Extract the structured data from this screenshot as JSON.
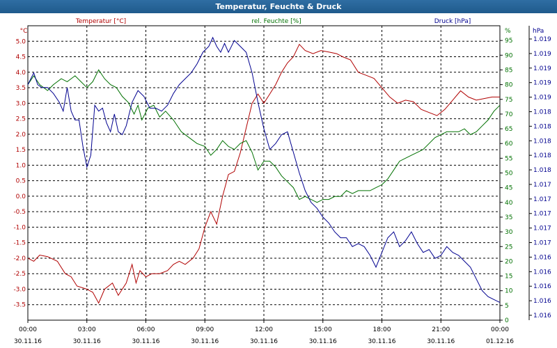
{
  "window": {
    "title": "Temperatur, Feuchte & Druck"
  },
  "colors": {
    "temperature": "#b00000",
    "humidity": "#007000",
    "pressure": "#00008f",
    "titlebar": "#1f5a8c"
  },
  "chart_data": {
    "type": "line",
    "title": "Temperatur, Feuchte & Druck",
    "grid": true,
    "x_ticks": [
      {
        "time": "00:00",
        "date": "30.11.16"
      },
      {
        "time": "03:00",
        "date": "30.11.16"
      },
      {
        "time": "06:00",
        "date": "30.11.16"
      },
      {
        "time": "09:00",
        "date": "30.11.16"
      },
      {
        "time": "12:00",
        "date": "30.11.16"
      },
      {
        "time": "15:00",
        "date": "30.11.16"
      },
      {
        "time": "18:00",
        "date": "30.11.16"
      },
      {
        "time": "21:00",
        "date": "30.11.16"
      },
      {
        "time": "00:00",
        "date": "01.12.16"
      }
    ],
    "axes": {
      "temperature": {
        "header": "Temperatur [°C]",
        "unit": "°C",
        "ylim": [
          -4.0,
          5.5
        ],
        "ticks": [
          "5.0",
          "4.5",
          "4.0",
          "3.5",
          "3.0",
          "2.5",
          "2.0",
          "1.5",
          "1.0",
          "0.5",
          "0.0",
          "-0.5",
          "-1.0",
          "-1.5",
          "-2.0",
          "-2.5",
          "-3.0",
          "-3.5"
        ]
      },
      "humidity": {
        "header": "rel. Feuchte [%]",
        "unit": "%",
        "ylim": [
          0,
          100
        ],
        "ticks": [
          "95",
          "90",
          "85",
          "80",
          "75",
          "70",
          "65",
          "60",
          "55",
          "50",
          "45",
          "40",
          "35",
          "30",
          "25",
          "20",
          "15",
          "10",
          "5",
          "0"
        ]
      },
      "pressure": {
        "header": "Druck [hPa]",
        "unit": "hPa",
        "ticks": [
          "1.019",
          "1.019",
          "1.019",
          "1.019",
          "1.019",
          "1.018",
          "1.018",
          "1.018",
          "1.018",
          "1.018",
          "1.017",
          "1.017",
          "1.017",
          "1.017",
          "1.017",
          "1.016",
          "1.016",
          "1.016",
          "1.016",
          "1.016"
        ]
      }
    },
    "series": [
      {
        "name": "Temperatur [°C]",
        "axis": "temperature",
        "values": [
          [
            0.0,
            -2.0
          ],
          [
            0.3,
            -2.1
          ],
          [
            0.6,
            -1.9
          ],
          [
            1.0,
            -1.95
          ],
          [
            1.5,
            -2.1
          ],
          [
            1.9,
            -2.5
          ],
          [
            2.2,
            -2.6
          ],
          [
            2.5,
            -2.9
          ],
          [
            3.0,
            -3.0
          ],
          [
            3.3,
            -3.1
          ],
          [
            3.6,
            -3.45
          ],
          [
            3.9,
            -3.0
          ],
          [
            4.3,
            -2.8
          ],
          [
            4.6,
            -3.2
          ],
          [
            5.0,
            -2.8
          ],
          [
            5.3,
            -2.2
          ],
          [
            5.5,
            -2.8
          ],
          [
            5.7,
            -2.4
          ],
          [
            6.0,
            -2.6
          ],
          [
            6.3,
            -2.5
          ],
          [
            6.7,
            -2.5
          ],
          [
            7.1,
            -2.4
          ],
          [
            7.4,
            -2.2
          ],
          [
            7.7,
            -2.1
          ],
          [
            8.0,
            -2.2
          ],
          [
            8.4,
            -2.0
          ],
          [
            8.7,
            -1.7
          ],
          [
            9.0,
            -1.0
          ],
          [
            9.3,
            -0.5
          ],
          [
            9.6,
            -0.9
          ],
          [
            9.9,
            0.0
          ],
          [
            10.2,
            0.7
          ],
          [
            10.5,
            0.8
          ],
          [
            10.8,
            1.4
          ],
          [
            11.1,
            2.2
          ],
          [
            11.4,
            3.0
          ],
          [
            11.7,
            3.3
          ],
          [
            12.0,
            3.0
          ],
          [
            12.3,
            3.3
          ],
          [
            12.6,
            3.6
          ],
          [
            12.9,
            4.0
          ],
          [
            13.2,
            4.3
          ],
          [
            13.5,
            4.5
          ],
          [
            13.8,
            4.9
          ],
          [
            14.1,
            4.7
          ],
          [
            14.5,
            4.6
          ],
          [
            14.9,
            4.7
          ],
          [
            15.3,
            4.65
          ],
          [
            15.7,
            4.6
          ],
          [
            16.0,
            4.5
          ],
          [
            16.4,
            4.4
          ],
          [
            16.8,
            4.0
          ],
          [
            17.2,
            3.9
          ],
          [
            17.6,
            3.8
          ],
          [
            18.0,
            3.5
          ],
          [
            18.4,
            3.2
          ],
          [
            18.8,
            3.0
          ],
          [
            19.2,
            3.1
          ],
          [
            19.6,
            3.05
          ],
          [
            20.0,
            2.8
          ],
          [
            20.4,
            2.7
          ],
          [
            20.8,
            2.6
          ],
          [
            21.2,
            2.8
          ],
          [
            21.6,
            3.1
          ],
          [
            22.0,
            3.4
          ],
          [
            22.4,
            3.2
          ],
          [
            22.8,
            3.1
          ],
          [
            23.2,
            3.15
          ],
          [
            23.6,
            3.2
          ],
          [
            24.0,
            3.2
          ]
        ]
      },
      {
        "name": "rel. Feuchte [%]",
        "axis": "humidity",
        "values": [
          [
            0.0,
            80
          ],
          [
            0.3,
            83
          ],
          [
            0.6,
            80
          ],
          [
            1.0,
            78
          ],
          [
            1.3,
            80
          ],
          [
            1.7,
            82
          ],
          [
            2.0,
            81
          ],
          [
            2.4,
            83
          ],
          [
            2.7,
            81
          ],
          [
            3.0,
            79
          ],
          [
            3.3,
            81
          ],
          [
            3.6,
            85
          ],
          [
            3.9,
            82
          ],
          [
            4.2,
            80
          ],
          [
            4.5,
            79
          ],
          [
            4.8,
            76
          ],
          [
            5.1,
            74
          ],
          [
            5.4,
            70
          ],
          [
            5.6,
            73
          ],
          [
            5.8,
            68
          ],
          [
            6.1,
            72
          ],
          [
            6.4,
            73
          ],
          [
            6.7,
            69
          ],
          [
            7.0,
            71
          ],
          [
            7.4,
            68
          ],
          [
            7.8,
            64
          ],
          [
            8.2,
            62
          ],
          [
            8.6,
            60
          ],
          [
            9.0,
            59
          ],
          [
            9.3,
            56
          ],
          [
            9.6,
            58
          ],
          [
            9.9,
            61
          ],
          [
            10.2,
            59
          ],
          [
            10.5,
            58
          ],
          [
            10.8,
            60
          ],
          [
            11.1,
            61
          ],
          [
            11.4,
            57
          ],
          [
            11.7,
            51
          ],
          [
            12.0,
            54
          ],
          [
            12.3,
            54
          ],
          [
            12.6,
            52
          ],
          [
            12.9,
            49
          ],
          [
            13.2,
            47
          ],
          [
            13.5,
            45
          ],
          [
            13.8,
            41
          ],
          [
            14.1,
            42
          ],
          [
            14.4,
            41
          ],
          [
            14.7,
            40
          ],
          [
            15.0,
            41
          ],
          [
            15.3,
            41
          ],
          [
            15.6,
            42
          ],
          [
            15.9,
            42
          ],
          [
            16.2,
            44
          ],
          [
            16.5,
            43
          ],
          [
            16.8,
            44
          ],
          [
            17.1,
            44
          ],
          [
            17.4,
            44
          ],
          [
            17.7,
            45
          ],
          [
            18.0,
            46
          ],
          [
            18.3,
            48
          ],
          [
            18.6,
            51
          ],
          [
            18.9,
            54
          ],
          [
            19.2,
            55
          ],
          [
            19.5,
            56
          ],
          [
            19.8,
            57
          ],
          [
            20.1,
            58
          ],
          [
            20.4,
            60
          ],
          [
            20.7,
            62
          ],
          [
            21.0,
            63
          ],
          [
            21.3,
            64
          ],
          [
            21.6,
            64
          ],
          [
            21.9,
            64
          ],
          [
            22.2,
            65
          ],
          [
            22.5,
            63
          ],
          [
            22.8,
            64
          ],
          [
            23.1,
            66
          ],
          [
            23.4,
            68
          ],
          [
            23.7,
            71
          ],
          [
            24.0,
            73
          ]
        ]
      },
      {
        "name": "Druck [hPa]",
        "axis": "pressure",
        "values": [
          [
            0.0,
            80
          ],
          [
            0.3,
            84
          ],
          [
            0.5,
            80
          ],
          [
            0.7,
            79
          ],
          [
            1.0,
            79
          ],
          [
            1.3,
            77
          ],
          [
            1.6,
            74
          ],
          [
            1.8,
            71
          ],
          [
            2.0,
            79
          ],
          [
            2.2,
            71
          ],
          [
            2.4,
            68
          ],
          [
            2.6,
            68
          ],
          [
            2.8,
            59
          ],
          [
            3.0,
            52
          ],
          [
            3.2,
            56
          ],
          [
            3.4,
            73
          ],
          [
            3.6,
            71
          ],
          [
            3.8,
            72
          ],
          [
            4.0,
            67
          ],
          [
            4.2,
            64
          ],
          [
            4.4,
            70
          ],
          [
            4.6,
            64
          ],
          [
            4.8,
            63
          ],
          [
            5.0,
            66
          ],
          [
            5.3,
            74
          ],
          [
            5.6,
            78
          ],
          [
            5.9,
            76
          ],
          [
            6.2,
            72
          ],
          [
            6.5,
            72
          ],
          [
            6.8,
            71
          ],
          [
            7.1,
            73
          ],
          [
            7.4,
            77
          ],
          [
            7.7,
            80
          ],
          [
            8.0,
            82
          ],
          [
            8.3,
            84
          ],
          [
            8.6,
            87
          ],
          [
            8.9,
            91
          ],
          [
            9.2,
            93
          ],
          [
            9.4,
            96
          ],
          [
            9.6,
            93
          ],
          [
            9.8,
            91
          ],
          [
            10.0,
            94
          ],
          [
            10.2,
            91
          ],
          [
            10.5,
            95
          ],
          [
            10.8,
            93
          ],
          [
            11.1,
            91
          ],
          [
            11.4,
            84
          ],
          [
            11.7,
            74
          ],
          [
            12.0,
            65
          ],
          [
            12.3,
            58
          ],
          [
            12.6,
            60
          ],
          [
            12.9,
            63
          ],
          [
            13.2,
            64
          ],
          [
            13.5,
            57
          ],
          [
            13.8,
            50
          ],
          [
            14.1,
            44
          ],
          [
            14.4,
            40
          ],
          [
            14.7,
            38
          ],
          [
            15.0,
            35
          ],
          [
            15.3,
            33
          ],
          [
            15.6,
            30
          ],
          [
            15.9,
            28
          ],
          [
            16.2,
            28
          ],
          [
            16.5,
            25
          ],
          [
            16.8,
            26
          ],
          [
            17.1,
            25
          ],
          [
            17.4,
            22
          ],
          [
            17.7,
            18
          ],
          [
            18.0,
            23
          ],
          [
            18.3,
            28
          ],
          [
            18.6,
            30
          ],
          [
            18.9,
            25
          ],
          [
            19.2,
            27
          ],
          [
            19.5,
            30
          ],
          [
            19.8,
            26
          ],
          [
            20.1,
            23
          ],
          [
            20.4,
            24
          ],
          [
            20.7,
            21
          ],
          [
            21.0,
            22
          ],
          [
            21.3,
            25
          ],
          [
            21.6,
            23
          ],
          [
            21.9,
            22
          ],
          [
            22.2,
            20
          ],
          [
            22.5,
            18
          ],
          [
            22.8,
            14
          ],
          [
            23.1,
            10
          ],
          [
            23.4,
            8
          ],
          [
            23.7,
            7
          ],
          [
            24.0,
            6
          ]
        ]
      }
    ]
  }
}
